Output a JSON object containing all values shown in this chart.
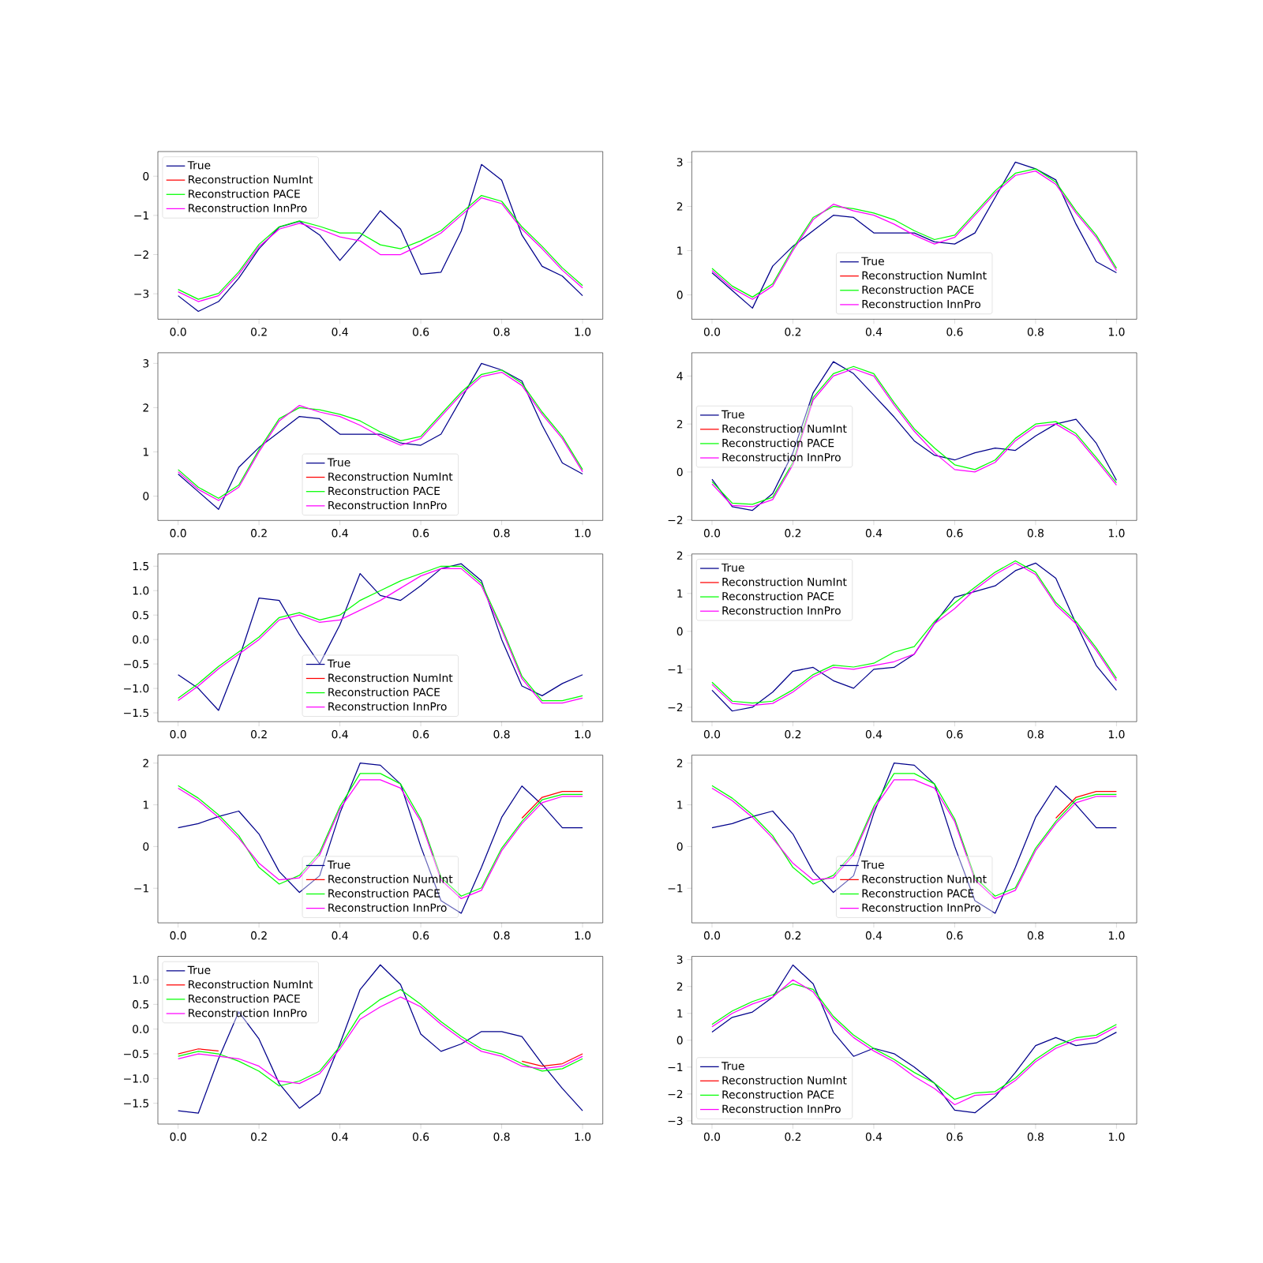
{
  "chart_data": [
    {
      "type": "line",
      "legend": "top left",
      "xlim": [
        -0.05,
        1.05
      ],
      "ylim": [
        -3.65,
        0.63
      ],
      "xticks": [
        {
          "value": 0,
          "label": "0.0"
        },
        {
          "value": 0.2,
          "label": "0.2"
        },
        {
          "value": 0.4,
          "label": "0.4"
        },
        {
          "value": 0.6,
          "label": "0.6"
        },
        {
          "value": 0.8,
          "label": "0.8"
        },
        {
          "value": 1,
          "label": "1.0"
        }
      ],
      "yticks": [
        {
          "value": -3,
          "label": "−3"
        },
        {
          "value": -2,
          "label": "−2"
        },
        {
          "value": -1,
          "label": "−1"
        },
        0
      ],
      "x": [
        0,
        0.05,
        0.1,
        0.15,
        0.2,
        0.25,
        0.3,
        0.35,
        0.4,
        0.45,
        0.5,
        0.55,
        0.6,
        0.65,
        0.7,
        0.75,
        0.8,
        0.85,
        0.9,
        0.95,
        1
      ],
      "series": [
        {
          "name": "True",
          "color": "#00008b",
          "values": [
            -3.05,
            -3.45,
            -3.2,
            -2.6,
            -1.85,
            -1.3,
            -1.15,
            -1.5,
            -2.15,
            -1.55,
            -0.88,
            -1.35,
            -2.5,
            -2.45,
            -1.4,
            0.3,
            -0.1,
            -1.5,
            -2.3,
            -2.55,
            -3.05
          ]
        },
        {
          "name": "Reconstruction NumInt",
          "color": "#ff0000",
          "values": [
            null,
            null,
            null,
            null,
            null,
            null,
            null,
            null,
            null,
            null,
            null,
            null,
            null,
            null,
            null,
            null,
            null,
            null,
            null,
            null,
            null
          ]
        },
        {
          "name": "Reconstruction PACE",
          "color": "#00ff00",
          "values": [
            -2.89,
            -3.14,
            -2.99,
            -2.44,
            -1.74,
            -1.29,
            -1.14,
            -1.28,
            -1.45,
            -1.45,
            -1.75,
            -1.85,
            -1.65,
            -1.39,
            -0.94,
            -0.49,
            -0.64,
            -1.29,
            -1.79,
            -2.34,
            -2.79
          ]
        },
        {
          "name": "Reconstruction InnPro",
          "color": "#ff00ff",
          "values": [
            -2.95,
            -3.2,
            -3.05,
            -2.5,
            -1.8,
            -1.35,
            -1.2,
            -1.35,
            -1.55,
            -1.65,
            -2.0,
            -2.0,
            -1.75,
            -1.45,
            -1.0,
            -0.55,
            -0.7,
            -1.35,
            -1.85,
            -2.4,
            -2.85
          ]
        }
      ]
    },
    {
      "type": "line",
      "legend": "bottom",
      "xlim": [
        -0.05,
        1.05
      ],
      "ylim": [
        -0.55,
        3.24
      ],
      "xticks": [
        {
          "value": 0,
          "label": "0.0"
        },
        {
          "value": 0.2,
          "label": "0.2"
        },
        {
          "value": 0.4,
          "label": "0.4"
        },
        {
          "value": 0.6,
          "label": "0.6"
        },
        {
          "value": 0.8,
          "label": "0.8"
        },
        {
          "value": 1,
          "label": "1.0"
        }
      ],
      "yticks": [
        0,
        1,
        2,
        3
      ],
      "x": [
        0,
        0.05,
        0.1,
        0.15,
        0.2,
        0.25,
        0.3,
        0.35,
        0.4,
        0.45,
        0.5,
        0.55,
        0.6,
        0.65,
        0.7,
        0.75,
        0.8,
        0.85,
        0.9,
        0.95,
        1
      ],
      "series": [
        {
          "name": "True",
          "color": "#00008b",
          "values": [
            0.5,
            0.1,
            -0.3,
            0.65,
            1.1,
            1.45,
            1.8,
            1.75,
            1.4,
            1.4,
            1.4,
            1.2,
            1.15,
            1.4,
            2.2,
            3.0,
            2.85,
            2.6,
            1.6,
            0.75,
            0.5
          ]
        },
        {
          "name": "Reconstruction NumInt",
          "color": "#ff0000",
          "values": [
            null,
            null,
            null,
            null,
            null,
            null,
            null,
            null,
            null,
            null,
            null,
            null,
            null,
            null,
            null,
            null,
            null,
            null,
            null,
            null,
            null
          ]
        },
        {
          "name": "Reconstruction PACE",
          "color": "#00ff00",
          "values": [
            0.6,
            0.2,
            -0.05,
            0.25,
            1.05,
            1.75,
            2.0,
            1.95,
            1.85,
            1.7,
            1.45,
            1.25,
            1.35,
            1.85,
            2.35,
            2.75,
            2.85,
            2.55,
            1.9,
            1.35,
            0.6
          ]
        },
        {
          "name": "Reconstruction InnPro",
          "color": "#ff00ff",
          "values": [
            0.55,
            0.15,
            -0.1,
            0.2,
            1.0,
            1.7,
            2.05,
            1.9,
            1.8,
            1.6,
            1.35,
            1.15,
            1.3,
            1.8,
            2.3,
            2.7,
            2.8,
            2.5,
            1.85,
            1.3,
            0.55
          ]
        }
      ]
    },
    {
      "type": "line",
      "legend": "bottom",
      "xlim": [
        -0.05,
        1.05
      ],
      "ylim": [
        -0.55,
        3.24
      ],
      "xticks": [
        {
          "value": 0,
          "label": "0.0"
        },
        {
          "value": 0.2,
          "label": "0.2"
        },
        {
          "value": 0.4,
          "label": "0.4"
        },
        {
          "value": 0.6,
          "label": "0.6"
        },
        {
          "value": 0.8,
          "label": "0.8"
        },
        {
          "value": 1,
          "label": "1.0"
        }
      ],
      "yticks": [
        0,
        1,
        2,
        3
      ],
      "x": [
        0,
        0.05,
        0.1,
        0.15,
        0.2,
        0.25,
        0.3,
        0.35,
        0.4,
        0.45,
        0.5,
        0.55,
        0.6,
        0.65,
        0.7,
        0.75,
        0.8,
        0.85,
        0.9,
        0.95,
        1
      ],
      "series": [
        {
          "name": "True",
          "color": "#00008b",
          "values": [
            0.5,
            0.1,
            -0.3,
            0.65,
            1.1,
            1.45,
            1.8,
            1.75,
            1.4,
            1.4,
            1.4,
            1.2,
            1.15,
            1.4,
            2.2,
            3.0,
            2.85,
            2.6,
            1.6,
            0.75,
            0.5
          ]
        },
        {
          "name": "Reconstruction NumInt",
          "color": "#ff0000",
          "values": [
            null,
            null,
            null,
            null,
            null,
            null,
            null,
            null,
            null,
            null,
            null,
            null,
            null,
            null,
            null,
            null,
            null,
            null,
            null,
            null,
            null
          ]
        },
        {
          "name": "Reconstruction PACE",
          "color": "#00ff00",
          "values": [
            0.6,
            0.2,
            -0.05,
            0.25,
            1.05,
            1.75,
            2.0,
            1.95,
            1.85,
            1.7,
            1.45,
            1.25,
            1.35,
            1.85,
            2.35,
            2.75,
            2.85,
            2.55,
            1.9,
            1.35,
            0.6
          ]
        },
        {
          "name": "Reconstruction InnPro",
          "color": "#ff00ff",
          "values": [
            0.55,
            0.15,
            -0.1,
            0.2,
            1.0,
            1.7,
            2.05,
            1.9,
            1.8,
            1.6,
            1.35,
            1.15,
            1.3,
            1.8,
            2.3,
            2.7,
            2.8,
            2.5,
            1.85,
            1.3,
            0.55
          ]
        }
      ]
    },
    {
      "type": "line",
      "legend": "left",
      "xlim": [
        -0.05,
        1.05
      ],
      "ylim": [
        -2.02,
        4.97
      ],
      "xticks": [
        {
          "value": 0,
          "label": "0.0"
        },
        {
          "value": 0.2,
          "label": "0.2"
        },
        {
          "value": 0.4,
          "label": "0.4"
        },
        {
          "value": 0.6,
          "label": "0.6"
        },
        {
          "value": 0.8,
          "label": "0.8"
        },
        {
          "value": 1,
          "label": "1.0"
        }
      ],
      "yticks": [
        {
          "value": -2,
          "label": "−2"
        },
        0,
        2,
        4
      ],
      "x": [
        0,
        0.05,
        0.1,
        0.15,
        0.2,
        0.25,
        0.3,
        0.35,
        0.4,
        0.45,
        0.5,
        0.55,
        0.6,
        0.65,
        0.7,
        0.75,
        0.8,
        0.85,
        0.9,
        0.95,
        1
      ],
      "series": [
        {
          "name": "True",
          "color": "#00008b",
          "values": [
            -0.3,
            -1.45,
            -1.6,
            -0.9,
            0.8,
            3.3,
            4.6,
            4.1,
            3.2,
            2.3,
            1.3,
            0.7,
            0.5,
            0.8,
            1.0,
            0.9,
            1.5,
            2.0,
            2.2,
            1.2,
            -0.35
          ]
        },
        {
          "name": "Reconstruction NumInt",
          "color": "#ff0000",
          "values": [
            null,
            null,
            null,
            null,
            null,
            null,
            null,
            null,
            null,
            null,
            null,
            null,
            null,
            null,
            null,
            null,
            null,
            null,
            null,
            null,
            null
          ]
        },
        {
          "name": "Reconstruction PACE",
          "color": "#00ff00",
          "values": [
            -0.4,
            -1.3,
            -1.35,
            -1.05,
            0.4,
            3.1,
            4.1,
            4.4,
            4.1,
            2.9,
            1.8,
            1.0,
            0.3,
            0.1,
            0.5,
            1.4,
            2.0,
            2.1,
            1.6,
            0.6,
            -0.45
          ]
        },
        {
          "name": "Reconstruction InnPro",
          "color": "#ff00ff",
          "values": [
            -0.5,
            -1.4,
            -1.45,
            -1.15,
            0.3,
            3.0,
            4.0,
            4.3,
            4.0,
            2.8,
            1.7,
            0.8,
            0.1,
            0.0,
            0.4,
            1.3,
            1.9,
            2.0,
            1.5,
            0.5,
            -0.55
          ]
        }
      ]
    },
    {
      "type": "line",
      "legend": "bottom",
      "xlim": [
        -0.05,
        1.05
      ],
      "ylim": [
        -1.68,
        1.75
      ],
      "xticks": [
        {
          "value": 0,
          "label": "0.0"
        },
        {
          "value": 0.2,
          "label": "0.2"
        },
        {
          "value": 0.4,
          "label": "0.4"
        },
        {
          "value": 0.6,
          "label": "0.6"
        },
        {
          "value": 0.8,
          "label": "0.8"
        },
        {
          "value": 1,
          "label": "1.0"
        }
      ],
      "yticks": [
        {
          "value": -1.5,
          "label": "−1.5"
        },
        {
          "value": -1,
          "label": "−1.0"
        },
        {
          "value": -0.5,
          "label": "−0.5"
        },
        {
          "value": 0,
          "label": "0.0"
        },
        {
          "value": 0.5,
          "label": "0.5"
        },
        {
          "value": 1,
          "label": "1.0"
        },
        {
          "value": 1.5,
          "label": "1.5"
        }
      ],
      "x": [
        0,
        0.05,
        0.1,
        0.15,
        0.2,
        0.25,
        0.3,
        0.35,
        0.4,
        0.45,
        0.5,
        0.55,
        0.6,
        0.65,
        0.7,
        0.75,
        0.8,
        0.85,
        0.9,
        0.95,
        1
      ],
      "series": [
        {
          "name": "True",
          "color": "#00008b",
          "values": [
            -0.72,
            -1.0,
            -1.45,
            -0.4,
            0.85,
            0.8,
            0.1,
            -0.5,
            0.3,
            1.35,
            0.9,
            0.8,
            1.1,
            1.45,
            1.55,
            1.2,
            0.0,
            -0.95,
            -1.15,
            -0.9,
            -0.72
          ]
        },
        {
          "name": "Reconstruction NumInt",
          "color": "#ff0000",
          "values": [
            null,
            null,
            null,
            null,
            null,
            null,
            null,
            null,
            null,
            null,
            null,
            null,
            null,
            null,
            null,
            null,
            null,
            null,
            null,
            null,
            null
          ]
        },
        {
          "name": "Reconstruction PACE",
          "color": "#00ff00",
          "values": [
            -1.2,
            -0.9,
            -0.55,
            -0.25,
            0.05,
            0.45,
            0.55,
            0.4,
            0.5,
            0.8,
            1.0,
            1.2,
            1.35,
            1.5,
            1.5,
            1.15,
            0.25,
            -0.75,
            -1.25,
            -1.25,
            -1.15
          ]
        },
        {
          "name": "Reconstruction InnPro",
          "color": "#ff00ff",
          "values": [
            -1.25,
            -0.95,
            -0.6,
            -0.3,
            0.0,
            0.4,
            0.5,
            0.35,
            0.4,
            0.6,
            0.8,
            1.05,
            1.3,
            1.45,
            1.45,
            1.1,
            0.2,
            -0.8,
            -1.3,
            -1.3,
            -1.2
          ]
        }
      ]
    },
    {
      "type": "line",
      "legend": "top left",
      "xlim": [
        -0.05,
        1.05
      ],
      "ylim": [
        -2.38,
        2.04
      ],
      "xticks": [
        {
          "value": 0,
          "label": "0.0"
        },
        {
          "value": 0.2,
          "label": "0.2"
        },
        {
          "value": 0.4,
          "label": "0.4"
        },
        {
          "value": 0.6,
          "label": "0.6"
        },
        {
          "value": 0.8,
          "label": "0.8"
        },
        {
          "value": 1,
          "label": "1.0"
        }
      ],
      "yticks": [
        {
          "value": -2,
          "label": "−2"
        },
        {
          "value": -1,
          "label": "−1"
        },
        0,
        1,
        2
      ],
      "x": [
        0,
        0.05,
        0.1,
        0.15,
        0.2,
        0.25,
        0.3,
        0.35,
        0.4,
        0.45,
        0.5,
        0.55,
        0.6,
        0.65,
        0.7,
        0.75,
        0.8,
        0.85,
        0.9,
        0.95,
        1
      ],
      "series": [
        {
          "name": "True",
          "color": "#00008b",
          "values": [
            -1.55,
            -2.1,
            -2.0,
            -1.6,
            -1.05,
            -0.95,
            -1.3,
            -1.5,
            -1.0,
            -0.95,
            -0.6,
            0.2,
            0.9,
            1.05,
            1.2,
            1.6,
            1.8,
            1.4,
            0.2,
            -0.9,
            -1.55
          ]
        },
        {
          "name": "Reconstruction NumInt",
          "color": "#ff0000",
          "values": [
            null,
            null,
            null,
            null,
            null,
            null,
            null,
            null,
            null,
            null,
            null,
            null,
            null,
            null,
            null,
            null,
            null,
            null,
            null,
            null,
            null
          ]
        },
        {
          "name": "Reconstruction PACE",
          "color": "#00ff00",
          "values": [
            -1.34,
            -1.84,
            -1.89,
            -1.84,
            -1.54,
            -1.14,
            -0.89,
            -0.94,
            -0.84,
            -0.55,
            -0.4,
            0.26,
            0.75,
            1.16,
            1.56,
            1.86,
            1.56,
            0.76,
            0.26,
            -0.44,
            -1.24
          ]
        },
        {
          "name": "Reconstruction InnPro",
          "color": "#ff00ff",
          "values": [
            -1.4,
            -1.9,
            -1.95,
            -1.9,
            -1.6,
            -1.2,
            -0.95,
            -1.0,
            -0.9,
            -0.8,
            -0.6,
            0.2,
            0.6,
            1.1,
            1.5,
            1.8,
            1.5,
            0.7,
            0.2,
            -0.5,
            -1.3
          ]
        }
      ]
    },
    {
      "type": "line",
      "legend": "bottom",
      "xlim": [
        -0.05,
        1.05
      ],
      "ylim": [
        -1.83,
        2.19
      ],
      "xticks": [
        {
          "value": 0,
          "label": "0.0"
        },
        {
          "value": 0.2,
          "label": "0.2"
        },
        {
          "value": 0.4,
          "label": "0.4"
        },
        {
          "value": 0.6,
          "label": "0.6"
        },
        {
          "value": 0.8,
          "label": "0.8"
        },
        {
          "value": 1,
          "label": "1.0"
        }
      ],
      "yticks": [
        {
          "value": -1,
          "label": "−1"
        },
        0,
        1,
        2
      ],
      "x": [
        0,
        0.05,
        0.1,
        0.15,
        0.2,
        0.25,
        0.3,
        0.35,
        0.4,
        0.45,
        0.5,
        0.55,
        0.6,
        0.65,
        0.7,
        0.75,
        0.8,
        0.85,
        0.9,
        0.95,
        1
      ],
      "series": [
        {
          "name": "True",
          "color": "#00008b",
          "values": [
            0.45,
            0.55,
            0.72,
            0.85,
            0.3,
            -0.6,
            -1.1,
            -0.7,
            0.8,
            2.0,
            1.95,
            1.5,
            0.0,
            -1.3,
            -1.6,
            -0.5,
            0.7,
            1.45,
            1.0,
            0.45,
            0.45
          ]
        },
        {
          "name": "Reconstruction NumInt",
          "color": "#ff0000",
          "values": [
            null,
            null,
            null,
            null,
            null,
            null,
            null,
            null,
            null,
            null,
            null,
            null,
            null,
            null,
            null,
            null,
            null,
            0.68,
            1.18,
            1.32,
            1.32
          ]
        },
        {
          "name": "Reconstruction PACE",
          "color": "#00ff00",
          "values": [
            1.46,
            1.16,
            0.76,
            0.26,
            -0.5,
            -0.9,
            -0.69,
            -0.14,
            0.96,
            1.75,
            1.75,
            1.5,
            0.66,
            -0.74,
            -1.19,
            -0.99,
            -0.04,
            0.6,
            1.12,
            1.25,
            1.25
          ]
        },
        {
          "name": "Reconstruction InnPro",
          "color": "#ff00ff",
          "values": [
            1.4,
            1.1,
            0.7,
            0.2,
            -0.4,
            -0.8,
            -0.75,
            -0.2,
            0.9,
            1.6,
            1.6,
            1.4,
            0.6,
            -0.8,
            -1.25,
            -1.05,
            -0.1,
            0.55,
            1.05,
            1.2,
            1.2
          ]
        }
      ]
    },
    {
      "type": "line",
      "legend": "bottom",
      "xlim": [
        -0.05,
        1.05
      ],
      "ylim": [
        -1.83,
        2.19
      ],
      "xticks": [
        {
          "value": 0,
          "label": "0.0"
        },
        {
          "value": 0.2,
          "label": "0.2"
        },
        {
          "value": 0.4,
          "label": "0.4"
        },
        {
          "value": 0.6,
          "label": "0.6"
        },
        {
          "value": 0.8,
          "label": "0.8"
        },
        {
          "value": 1,
          "label": "1.0"
        }
      ],
      "yticks": [
        {
          "value": -1,
          "label": "−1"
        },
        0,
        1,
        2
      ],
      "x": [
        0,
        0.05,
        0.1,
        0.15,
        0.2,
        0.25,
        0.3,
        0.35,
        0.4,
        0.45,
        0.5,
        0.55,
        0.6,
        0.65,
        0.7,
        0.75,
        0.8,
        0.85,
        0.9,
        0.95,
        1
      ],
      "series": [
        {
          "name": "True",
          "color": "#00008b",
          "values": [
            0.45,
            0.55,
            0.72,
            0.85,
            0.3,
            -0.6,
            -1.1,
            -0.7,
            0.8,
            2.0,
            1.95,
            1.5,
            0.0,
            -1.3,
            -1.6,
            -0.5,
            0.7,
            1.45,
            1.0,
            0.45,
            0.45
          ]
        },
        {
          "name": "Reconstruction NumInt",
          "color": "#ff0000",
          "values": [
            null,
            null,
            null,
            null,
            null,
            null,
            null,
            null,
            null,
            null,
            null,
            null,
            null,
            null,
            null,
            null,
            null,
            0.68,
            1.18,
            1.32,
            1.32
          ]
        },
        {
          "name": "Reconstruction PACE",
          "color": "#00ff00",
          "values": [
            1.46,
            1.16,
            0.76,
            0.26,
            -0.5,
            -0.9,
            -0.69,
            -0.14,
            0.96,
            1.75,
            1.75,
            1.5,
            0.66,
            -0.74,
            -1.19,
            -0.99,
            -0.04,
            0.6,
            1.12,
            1.25,
            1.25
          ]
        },
        {
          "name": "Reconstruction InnPro",
          "color": "#ff00ff",
          "values": [
            1.4,
            1.1,
            0.7,
            0.2,
            -0.4,
            -0.8,
            -0.75,
            -0.2,
            0.9,
            1.6,
            1.6,
            1.4,
            0.6,
            -0.8,
            -1.25,
            -1.05,
            -0.1,
            0.55,
            1.05,
            1.2,
            1.2
          ]
        }
      ]
    },
    {
      "type": "line",
      "legend": "top left",
      "xlim": [
        -0.05,
        1.05
      ],
      "ylim": [
        -1.92,
        1.47
      ],
      "xticks": [
        {
          "value": 0,
          "label": "0.0"
        },
        {
          "value": 0.2,
          "label": "0.2"
        },
        {
          "value": 0.4,
          "label": "0.4"
        },
        {
          "value": 0.6,
          "label": "0.6"
        },
        {
          "value": 0.8,
          "label": "0.8"
        },
        {
          "value": 1,
          "label": "1.0"
        }
      ],
      "yticks": [
        {
          "value": -1.5,
          "label": "−1.5"
        },
        {
          "value": -1,
          "label": "−1.0"
        },
        {
          "value": -0.5,
          "label": "−0.5"
        },
        {
          "value": 0,
          "label": "0.0"
        },
        {
          "value": 0.5,
          "label": "0.5"
        },
        {
          "value": 1,
          "label": "1.0"
        }
      ],
      "x": [
        0,
        0.05,
        0.1,
        0.15,
        0.2,
        0.25,
        0.3,
        0.35,
        0.4,
        0.45,
        0.5,
        0.55,
        0.6,
        0.65,
        0.7,
        0.75,
        0.8,
        0.85,
        0.9,
        0.95,
        1
      ],
      "series": [
        {
          "name": "True",
          "color": "#00008b",
          "values": [
            -1.65,
            -1.7,
            -0.6,
            0.35,
            -0.2,
            -1.1,
            -1.6,
            -1.3,
            -0.3,
            0.8,
            1.3,
            0.9,
            -0.1,
            -0.45,
            -0.3,
            -0.05,
            -0.05,
            -0.15,
            -0.7,
            -1.2,
            -1.65
          ]
        },
        {
          "name": "Reconstruction NumInt",
          "color": "#ff0000",
          "values": [
            -0.5,
            -0.4,
            -0.44,
            null,
            null,
            null,
            null,
            null,
            null,
            null,
            null,
            null,
            null,
            null,
            null,
            null,
            null,
            -0.65,
            -0.75,
            -0.7,
            -0.5
          ]
        },
        {
          "name": "Reconstruction PACE",
          "color": "#00ff00",
          "values": [
            -0.55,
            -0.45,
            -0.5,
            -0.65,
            -0.85,
            -1.15,
            -1.05,
            -0.85,
            -0.35,
            0.3,
            0.6,
            0.8,
            0.5,
            0.15,
            -0.15,
            -0.4,
            -0.5,
            -0.7,
            -0.85,
            -0.8,
            -0.6
          ]
        },
        {
          "name": "Reconstruction InnPro",
          "color": "#ff00ff",
          "values": [
            -0.6,
            -0.5,
            -0.55,
            -0.6,
            -0.75,
            -1.05,
            -1.1,
            -0.9,
            -0.4,
            0.2,
            0.45,
            0.65,
            0.45,
            0.1,
            -0.2,
            -0.45,
            -0.55,
            -0.75,
            -0.8,
            -0.75,
            -0.55
          ]
        }
      ]
    },
    {
      "type": "line",
      "legend": "bottom left",
      "xlim": [
        -0.05,
        1.05
      ],
      "ylim": [
        -3.12,
        3.12
      ],
      "xticks": [
        {
          "value": 0,
          "label": "0.0"
        },
        {
          "value": 0.2,
          "label": "0.2"
        },
        {
          "value": 0.4,
          "label": "0.4"
        },
        {
          "value": 0.6,
          "label": "0.6"
        },
        {
          "value": 0.8,
          "label": "0.8"
        },
        {
          "value": 1,
          "label": "1.0"
        }
      ],
      "yticks": [
        {
          "value": -3,
          "label": "−3"
        },
        {
          "value": -2,
          "label": "−2"
        },
        {
          "value": -1,
          "label": "−1"
        },
        0,
        1,
        2,
        3
      ],
      "x": [
        0,
        0.05,
        0.1,
        0.15,
        0.2,
        0.25,
        0.3,
        0.35,
        0.4,
        0.45,
        0.5,
        0.55,
        0.6,
        0.65,
        0.7,
        0.75,
        0.8,
        0.85,
        0.9,
        0.95,
        1
      ],
      "series": [
        {
          "name": "True",
          "color": "#00008b",
          "values": [
            0.3,
            0.85,
            1.05,
            1.6,
            2.8,
            2.1,
            0.3,
            -0.6,
            -0.3,
            -0.5,
            -1.0,
            -1.6,
            -2.6,
            -2.7,
            -2.1,
            -1.2,
            -0.2,
            0.1,
            -0.2,
            -0.1,
            0.3
          ]
        },
        {
          "name": "Reconstruction NumInt",
          "color": "#ff0000",
          "values": [
            null,
            null,
            null,
            null,
            null,
            null,
            null,
            null,
            null,
            null,
            null,
            null,
            null,
            null,
            null,
            null,
            null,
            null,
            null,
            null,
            null
          ]
        },
        {
          "name": "Reconstruction PACE",
          "color": "#00ff00",
          "values": [
            0.59,
            1.09,
            1.44,
            1.69,
            2.1,
            1.89,
            0.89,
            0.19,
            -0.31,
            -0.71,
            -1.2,
            -1.6,
            -2.2,
            -1.96,
            -1.91,
            -1.41,
            -0.71,
            -0.21,
            0.09,
            0.19,
            0.59
          ]
        },
        {
          "name": "Reconstruction InnPro",
          "color": "#ff00ff",
          "values": [
            0.5,
            1.0,
            1.35,
            1.6,
            2.25,
            1.8,
            0.8,
            0.1,
            -0.4,
            -0.8,
            -1.35,
            -1.8,
            -2.4,
            -2.05,
            -2.0,
            -1.5,
            -0.8,
            -0.3,
            0.0,
            0.1,
            0.5
          ]
        }
      ]
    }
  ]
}
